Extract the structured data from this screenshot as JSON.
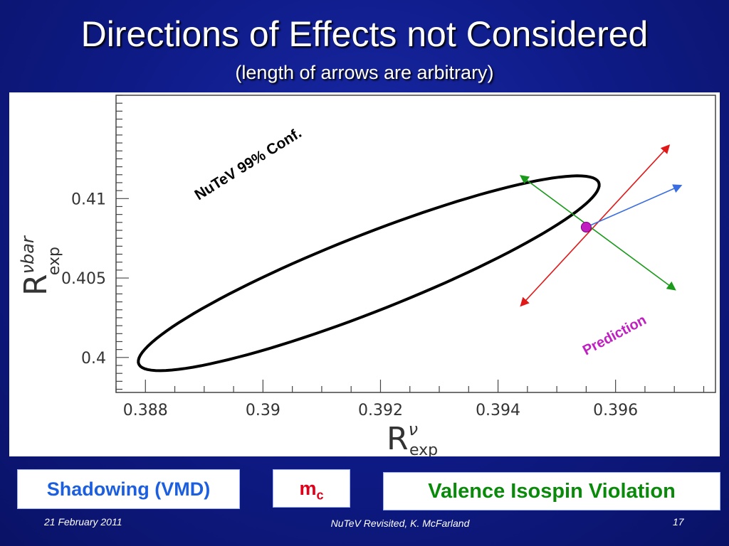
{
  "slide": {
    "title": "Directions of Effects not Considered",
    "subtitle": "(length of arrows are arbitrary)"
  },
  "chart_data": {
    "type": "scatter",
    "xlabel_main": "R",
    "xlabel_sup": "ν",
    "xlabel_sub": "exp",
    "ylabel_main": "R",
    "ylabel_sup": "νbar",
    "ylabel_sub": "exp",
    "xlim": [
      0.3875,
      0.3977
    ],
    "ylim": [
      0.3978,
      0.4165
    ],
    "xticks": [
      "0.388",
      "0.39",
      "0.392",
      "0.394",
      "0.396"
    ],
    "yticks": [
      "0.4",
      "0.405",
      "0.41"
    ],
    "ellipse": {
      "label": "NuTeV 99% Conf.",
      "center": [
        0.3918,
        0.4053
      ],
      "semi_major": [
        0.0037,
        0.0061
      ],
      "semi_minor": [
        -0.0013,
        0.0006
      ]
    },
    "prediction": {
      "label": "Prediction",
      "x": 0.3955,
      "y": 0.4082
    },
    "arrows": [
      {
        "name": "red-arrow",
        "color": "#e01818",
        "from": [
          0.3944,
          0.4033
        ],
        "to": [
          0.3969,
          0.4133
        ]
      },
      {
        "name": "blue-arrow",
        "color": "#3a6ee0",
        "from": [
          0.3955,
          0.4082
        ],
        "to": [
          0.3971,
          0.4108
        ]
      },
      {
        "name": "green-arrow",
        "color": "#1a9a1a",
        "from": [
          0.3944,
          0.4114
        ],
        "to": [
          0.397,
          0.4043
        ]
      }
    ]
  },
  "legend_boxes": {
    "shadowing": "Shadowing (VMD)",
    "mc_main": "m",
    "mc_sub": "c",
    "valence": "Valence Isospin Violation"
  },
  "footer": {
    "date": "21 February 2011",
    "center": "NuTeV Revisited, K. McFarland",
    "page": "17"
  }
}
